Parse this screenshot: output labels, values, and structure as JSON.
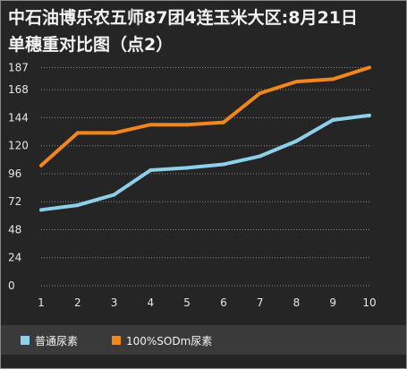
{
  "chart_data": {
    "type": "line",
    "title": "中石油博乐农五师87团4连玉米大区:8月21日\n单穗重对比图（点2）",
    "xlabel": "",
    "ylabel": "",
    "categories": [
      "1",
      "2",
      "3",
      "4",
      "5",
      "6",
      "7",
      "8",
      "9",
      "10"
    ],
    "yticks": [
      0,
      24,
      48,
      72,
      96,
      120,
      144,
      168,
      187
    ],
    "ylim": [
      0,
      195
    ],
    "grid": true,
    "legend": "bottom",
    "series": [
      {
        "name": "普通尿素",
        "color": "#8ecfea",
        "values": [
          65,
          69,
          78,
          99,
          101,
          104,
          111,
          124,
          142,
          146
        ]
      },
      {
        "name": "100%SODm尿素",
        "color": "#f0861c",
        "values": [
          103,
          131,
          131,
          138,
          138,
          140,
          165,
          175,
          177,
          187
        ]
      }
    ]
  },
  "colors": {
    "background": "#252525",
    "gridline": "#8c8c8c",
    "legend_band": "#3a3a3a",
    "text": "#f2f2f2"
  }
}
